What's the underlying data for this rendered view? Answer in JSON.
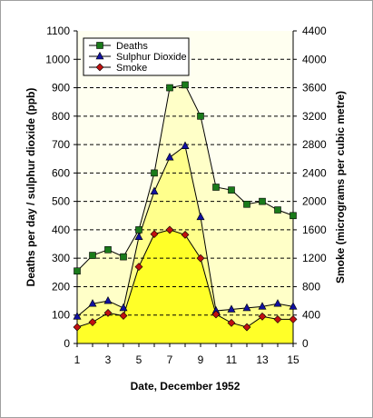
{
  "chart_data": {
    "type": "line",
    "x": [
      1,
      2,
      3,
      4,
      5,
      6,
      7,
      8,
      9,
      10,
      11,
      12,
      13,
      14,
      15
    ],
    "x_ticks": [
      "1",
      "3",
      "5",
      "7",
      "9",
      "11",
      "13",
      "15"
    ],
    "xlabel": "Date, December 1952",
    "ylabel_left": "Deaths per day / sulphur dioxide (ppb)",
    "ylabel_right": "Smoke (micrograms per cubic metre)",
    "ylim_left": [
      0,
      1100
    ],
    "ylim_right": [
      0,
      4400
    ],
    "y_ticks_left": [
      "0",
      "100",
      "200",
      "300",
      "400",
      "500",
      "600",
      "700",
      "800",
      "900",
      "1000",
      "1100"
    ],
    "y_ticks_right": [
      "0",
      "400",
      "800",
      "1200",
      "1600",
      "2000",
      "2400",
      "2800",
      "3200",
      "3600",
      "4000",
      "4400"
    ],
    "grid": "horizontal dashed",
    "legend_position": "top-left",
    "background_color": "#fffff0",
    "series": [
      {
        "name": "Deaths",
        "axis": "left",
        "marker": "square",
        "color": "#1a7a1a",
        "fill": "#ffffc8",
        "values": [
          255,
          310,
          330,
          305,
          400,
          600,
          900,
          910,
          800,
          550,
          540,
          490,
          500,
          470,
          450
        ]
      },
      {
        "name": "Sulphur Dioxide",
        "axis": "left",
        "marker": "triangle",
        "color": "#1010a0",
        "fill": "#ffff8c",
        "values": [
          95,
          140,
          150,
          125,
          375,
          535,
          655,
          695,
          445,
          115,
          120,
          125,
          130,
          140,
          130
        ]
      },
      {
        "name": "Smoke",
        "axis": "right",
        "marker": "diamond",
        "color": "#c01010",
        "fill": "#ffff28",
        "values": [
          230,
          300,
          430,
          390,
          1080,
          1540,
          1600,
          1530,
          1200,
          410,
          290,
          230,
          380,
          340,
          340
        ]
      }
    ]
  }
}
